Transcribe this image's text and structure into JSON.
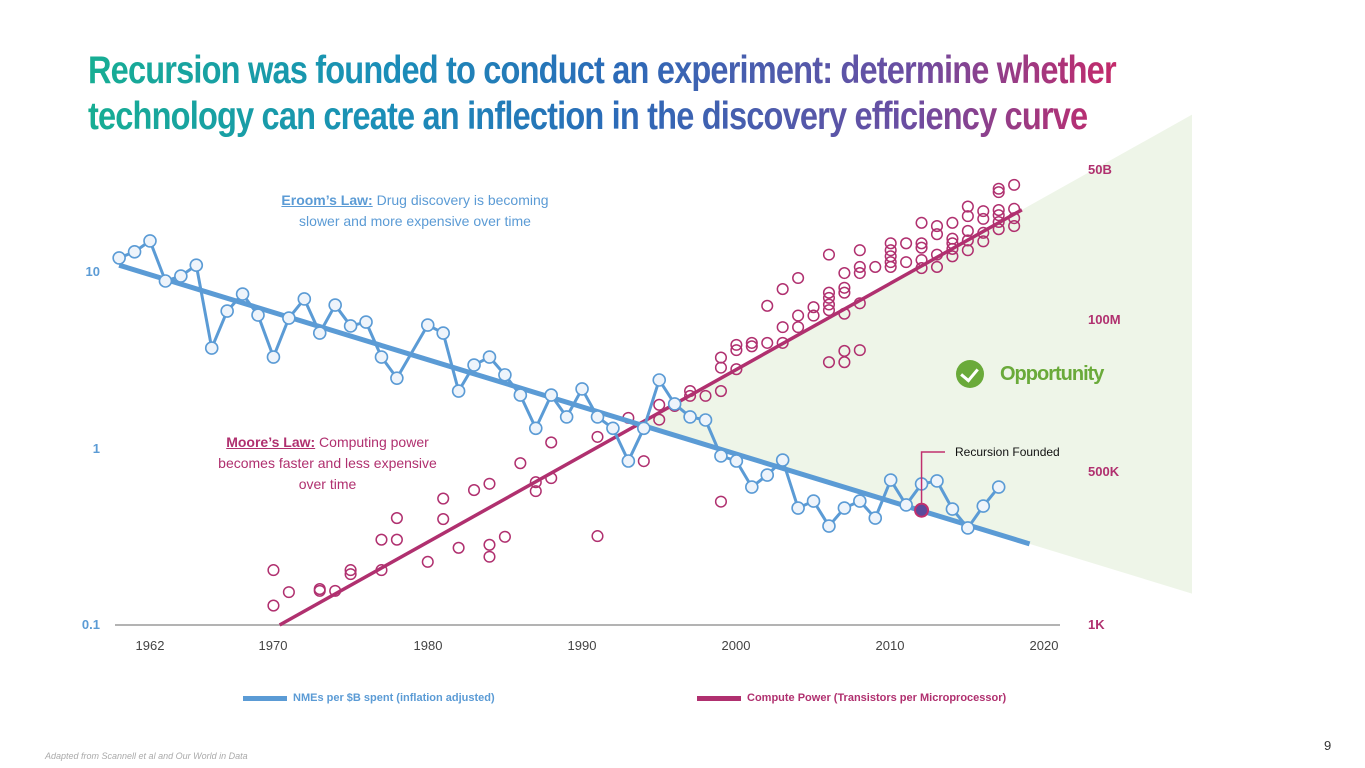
{
  "title": {
    "line1": "Recursion was founded to conduct an experiment: determine whether",
    "line2": "technology can create an inflection in the discovery efficiency curve"
  },
  "chart_data": {
    "type": "line+scatter",
    "x_ticks": [
      "1962",
      "1970",
      "1980",
      "1990",
      "2000",
      "2010",
      "2020"
    ],
    "xlim": [
      1962,
      2020
    ],
    "y_left": {
      "scale": "log",
      "ticks": [
        "10",
        "1",
        "0.1"
      ],
      "range": [
        0.1,
        30
      ]
    },
    "y_right": {
      "scale": "log",
      "ticks": [
        "50B",
        "100M",
        "500K",
        "1K"
      ],
      "tick_values": [
        50000000000,
        100000000,
        500000,
        1000
      ]
    },
    "grid": false,
    "legend_position": "bottom",
    "colors": {
      "nme": "#5b9bd5",
      "compute": "#b0306f",
      "opportunity": "#6aaa3a",
      "opportunity_fill": "#eef5e8"
    },
    "series": [
      {
        "name": "NMEs per $B spent (inflation adjusted)",
        "axis": "left",
        "type": "line",
        "x": [
          1960,
          1961,
          1962,
          1963,
          1964,
          1965,
          1966,
          1967,
          1968,
          1969,
          1970,
          1971,
          1972,
          1973,
          1974,
          1975,
          1976,
          1977,
          1978,
          1980,
          1981,
          1982,
          1983,
          1984,
          1985,
          1986,
          1987,
          1988,
          1989,
          1990,
          1991,
          1992,
          1993,
          1994,
          1995,
          1996,
          1997,
          1998,
          1999,
          2000,
          2001,
          2002,
          2003,
          2004,
          2005,
          2006,
          2007,
          2008,
          2009,
          2010,
          2011,
          2012,
          2013,
          2014,
          2015,
          2016,
          2017
        ],
        "y": [
          12.1,
          13.1,
          15.1,
          8.95,
          9.55,
          11.0,
          3.73,
          6.05,
          7.55,
          5.74,
          3.32,
          5.52,
          7.08,
          4.54,
          6.54,
          4.98,
          5.24,
          3.32,
          2.52,
          5.04,
          4.54,
          2.13,
          2.99,
          3.32,
          2.63,
          2.02,
          1.31,
          2.02,
          1.52,
          2.19,
          1.52,
          1.31,
          0.855,
          1.31,
          2.46,
          1.8,
          1.52,
          1.46,
          0.913,
          0.855,
          0.609,
          0.712,
          0.866,
          0.463,
          0.507,
          0.366,
          0.463,
          0.507,
          0.406,
          0.667,
          0.482,
          0.634,
          0.659,
          0.457,
          0.357,
          0.475,
          0.609
        ],
        "trend": [
          [
            1960,
            11.0
          ],
          [
            2019,
            0.29
          ]
        ]
      },
      {
        "name": "Compute Power (Transistors per Microprocessor)",
        "axis": "right",
        "type": "scatter",
        "points": [
          [
            1970,
            9300
          ],
          [
            1970,
            2200
          ],
          [
            1971,
            3800
          ],
          [
            1973,
            4300
          ],
          [
            1973,
            4000
          ],
          [
            1974,
            4000
          ],
          [
            1975,
            9300
          ],
          [
            1975,
            7900
          ],
          [
            1977,
            32000
          ],
          [
            1977,
            9300
          ],
          [
            1978,
            77000
          ],
          [
            1978,
            32000
          ],
          [
            1980,
            13000
          ],
          [
            1981,
            170000
          ],
          [
            1981,
            74000
          ],
          [
            1982,
            23000
          ],
          [
            1983,
            240000
          ],
          [
            1984,
            310000
          ],
          [
            1984,
            26000
          ],
          [
            1984,
            16000
          ],
          [
            1985,
            36000
          ],
          [
            1986,
            680000
          ],
          [
            1987,
            330000
          ],
          [
            1987,
            230000
          ],
          [
            1988,
            1400000
          ],
          [
            1988,
            390000
          ],
          [
            1991,
            1700000
          ],
          [
            1991,
            37000
          ],
          [
            1993,
            3300000
          ],
          [
            1994,
            730000
          ],
          [
            1995,
            5200000
          ],
          [
            1995,
            3100000
          ],
          [
            1996,
            5000000
          ],
          [
            1997,
            8400000
          ],
          [
            1997,
            7100000
          ],
          [
            1998,
            7100000
          ],
          [
            1999,
            27000000
          ],
          [
            1999,
            19000000
          ],
          [
            1999,
            8400000
          ],
          [
            1999,
            150000
          ],
          [
            2000,
            42000000
          ],
          [
            2000,
            35000000
          ],
          [
            2000,
            18000000
          ],
          [
            2001,
            45000000
          ],
          [
            2001,
            40000000
          ],
          [
            2002,
            45000000
          ],
          [
            2002,
            180000000
          ],
          [
            2003,
            360000000
          ],
          [
            2003,
            78000000
          ],
          [
            2003,
            45000000
          ],
          [
            2004,
            570000000
          ],
          [
            2004,
            120000000
          ],
          [
            2004,
            78000000
          ],
          [
            2005,
            170000000
          ],
          [
            2005,
            120000000
          ],
          [
            2006,
            1500000000
          ],
          [
            2006,
            310000000
          ],
          [
            2006,
            250000000
          ],
          [
            2006,
            190000000
          ],
          [
            2006,
            150000000
          ],
          [
            2006,
            23000000
          ],
          [
            2007,
            700000000
          ],
          [
            2007,
            380000000
          ],
          [
            2007,
            310000000
          ],
          [
            2007,
            130000000
          ],
          [
            2007,
            34000000
          ],
          [
            2007,
            23000000
          ],
          [
            2008,
            1800000000
          ],
          [
            2008,
            900000000
          ],
          [
            2008,
            700000000
          ],
          [
            2008,
            200000000
          ],
          [
            2008,
            35000000
          ],
          [
            2009,
            900000000
          ],
          [
            2010,
            2400000000
          ],
          [
            2010,
            1800000000
          ],
          [
            2010,
            1400000000
          ],
          [
            2010,
            1100000000
          ],
          [
            2010,
            900000000
          ],
          [
            2011,
            2400000000
          ],
          [
            2011,
            1100000000
          ],
          [
            2012,
            5600000000
          ],
          [
            2012,
            2400000000
          ],
          [
            2012,
            2000000000
          ],
          [
            2012,
            1200000000
          ],
          [
            2012,
            860000000
          ],
          [
            2013,
            4900000000
          ],
          [
            2013,
            3500000000
          ],
          [
            2013,
            1500000000
          ],
          [
            2013,
            900000000
          ],
          [
            2014,
            5600000000
          ],
          [
            2014,
            2900000000
          ],
          [
            2014,
            2400000000
          ],
          [
            2014,
            1900000000
          ],
          [
            2014,
            1400000000
          ],
          [
            2015,
            11000000000
          ],
          [
            2015,
            7400000000
          ],
          [
            2015,
            4000000000
          ],
          [
            2015,
            2700000000
          ],
          [
            2015,
            1800000000
          ],
          [
            2016,
            9100000000
          ],
          [
            2016,
            6600000000
          ],
          [
            2016,
            3700000000
          ],
          [
            2016,
            2600000000
          ],
          [
            2017,
            23000000000
          ],
          [
            2017,
            20000000000
          ],
          [
            2017,
            9500000000
          ],
          [
            2017,
            7700000000
          ],
          [
            2017,
            5800000000
          ],
          [
            2017,
            4300000000
          ],
          [
            2018,
            27000000000
          ],
          [
            2018,
            10000000000
          ],
          [
            2018,
            6800000000
          ],
          [
            2018,
            4900000000
          ]
        ],
        "trend": [
          [
            1970.4,
            1000
          ],
          [
            2018.5,
            9600000000
          ]
        ]
      }
    ],
    "annotations": {
      "eroom": {
        "label": "Eroom’s Law:",
        "text": " Drug discovery is becoming slower and more expensive over time"
      },
      "moore": {
        "label": "Moore’s Law:",
        "text": " Computing power becomes faster and less expensive over time"
      },
      "opportunity": {
        "text": "Opportunity",
        "icon": "check-circle-icon"
      },
      "founded": {
        "text": "Recursion Founded",
        "year": 2012,
        "value": 0.45
      }
    }
  },
  "footnote": "Adapted from Scannell et al and Our World in Data",
  "page_number": "9"
}
